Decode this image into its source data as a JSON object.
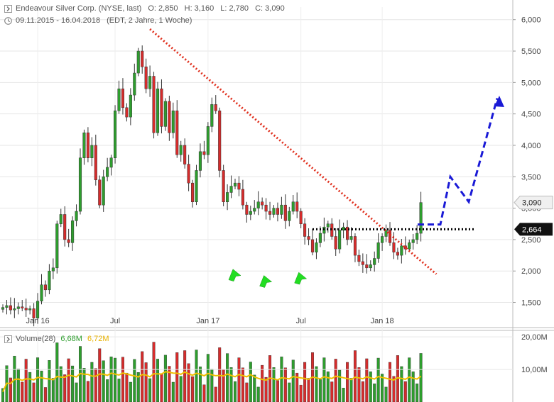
{
  "header": {
    "title": "Endeavour Silver Corp. (NYSE, last)",
    "open": "O: 2,850",
    "high": "H: 3,160",
    "low": "L: 2,780",
    "close": "C: 3,090",
    "date_range": "09.11.2015 - 16.04.2018",
    "info": "(EDT, 2 Jahre, 1 Woche)"
  },
  "volume_header": {
    "label": "Volume(28)",
    "value1": "6,68M",
    "value2": "6,72M"
  },
  "colors": {
    "up": "#2e9e2e",
    "down": "#d62c2c",
    "trendline": "#e0301e",
    "projection": "#1a1ad6",
    "support": "#000000",
    "arrow": "#22dd22",
    "volume_ma": "#f0c000",
    "last_price_tag": "#111111",
    "price_tag": "#f0f0f0"
  },
  "chart_data": {
    "type": "candlestick",
    "x_labels": [
      "Jan 16",
      "Jul",
      "Jan 17",
      "Jul",
      "Jan 18"
    ],
    "y_ticks": [
      "1,500",
      "2,000",
      "2,500",
      "3,000",
      "3,500",
      "4,000",
      "4,500",
      "5,000",
      "5,500",
      "6,000"
    ],
    "ylim": [
      1.1,
      6.2
    ],
    "volume_ticks": [
      "10,00M",
      "20,00M"
    ],
    "volume_ylim": [
      0,
      22
    ],
    "price_tags": {
      "current": "3,090",
      "support": "2,664"
    },
    "support_level": 2.664,
    "trendline": [
      [
        0,
        5.85
      ],
      [
        87,
        1.95
      ]
    ],
    "projection": [
      [
        78,
        2.74
      ],
      [
        82,
        2.74
      ],
      [
        85,
        3.5
      ],
      [
        88,
        3.1
      ],
      [
        93,
        4.85
      ]
    ],
    "arrows": [
      [
        0,
        1.95
      ],
      [
        19,
        1.85
      ],
      [
        28,
        1.9
      ]
    ],
    "arrows_at_candles": [
      60,
      68,
      77
    ],
    "closes": [
      1.42,
      1.45,
      1.38,
      1.4,
      1.43,
      1.41,
      1.38,
      1.4,
      1.25,
      1.52,
      1.78,
      1.7,
      2.0,
      2.05,
      2.75,
      2.9,
      2.5,
      2.45,
      2.8,
      2.95,
      3.8,
      4.2,
      3.8,
      4.0,
      3.45,
      3.05,
      3.5,
      3.65,
      3.8,
      4.55,
      4.9,
      4.6,
      4.45,
      4.8,
      5.15,
      5.5,
      5.25,
      4.9,
      5.1,
      4.2,
      4.9,
      4.3,
      4.7,
      4.2,
      4.55,
      3.85,
      4.0,
      3.7,
      3.4,
      3.1,
      3.6,
      3.9,
      3.85,
      4.3,
      4.65,
      4.55,
      3.6,
      3.1,
      3.25,
      3.35,
      3.4,
      3.3,
      3.05,
      2.9,
      2.95,
      3.0,
      3.1,
      3.05,
      2.95,
      2.9,
      3.0,
      2.9,
      3.05,
      2.8,
      2.95,
      3.1,
      2.95,
      2.75,
      2.55,
      2.5,
      2.3,
      2.45,
      2.6,
      2.7,
      2.75,
      2.55,
      2.35,
      2.65,
      2.7,
      2.5,
      2.55,
      2.25,
      2.15,
      2.1,
      2.05,
      2.1,
      2.2,
      2.45,
      2.55,
      2.65,
      2.45,
      2.3,
      2.25,
      2.4,
      2.35,
      2.45,
      2.5,
      2.6,
      3.09
    ]
  }
}
